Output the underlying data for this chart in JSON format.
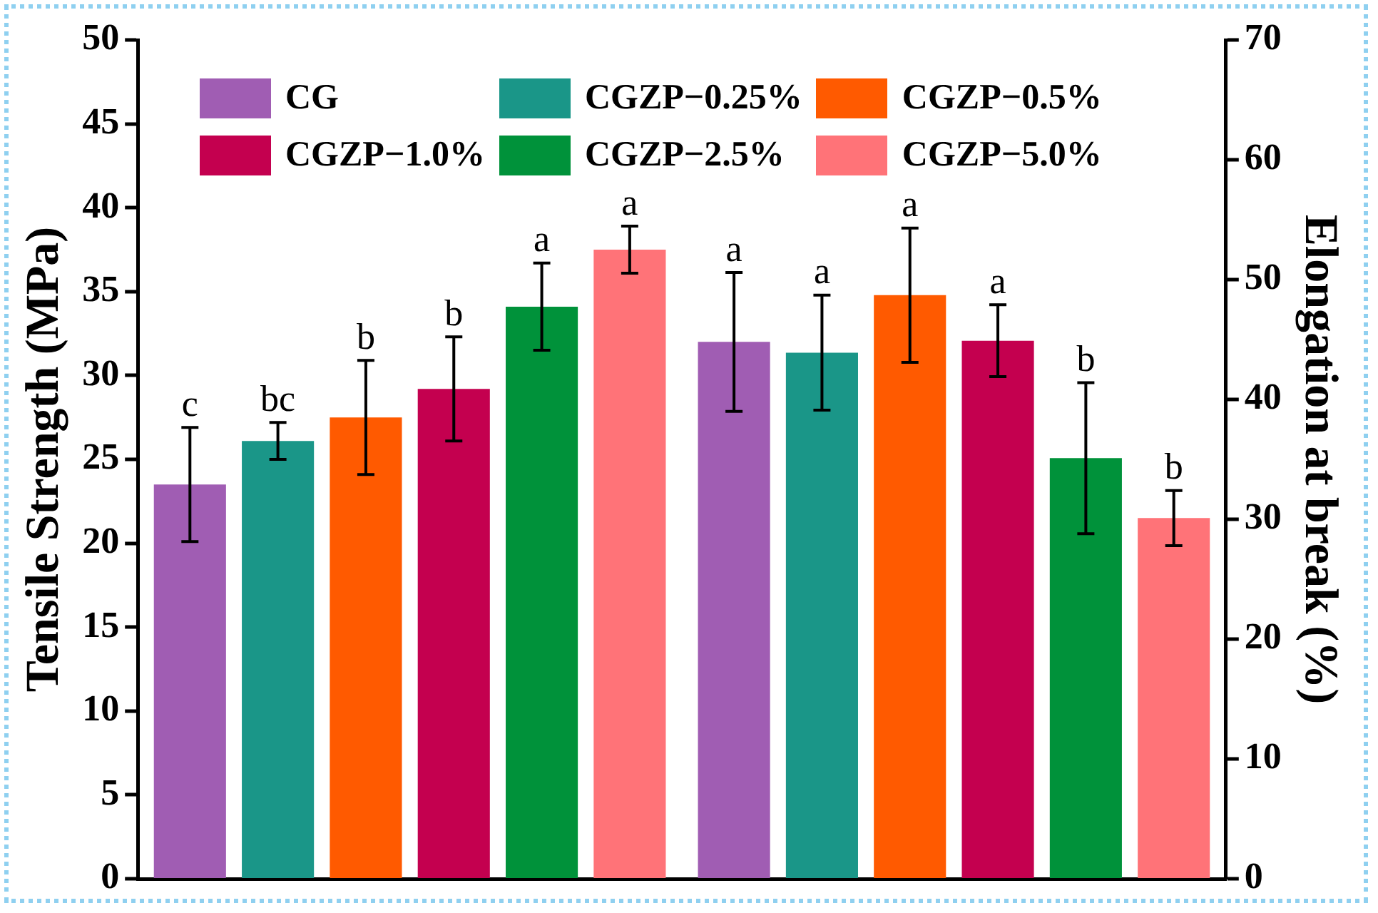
{
  "chart_data": {
    "type": "bar",
    "ylabel": "Tensile Strength (MPa)",
    "y2label": "Elongation at break (%)",
    "categories": [
      null,
      null
    ],
    "ylim": [
      0,
      50
    ],
    "yticks": [
      0,
      5,
      10,
      15,
      20,
      25,
      30,
      35,
      40,
      45,
      50
    ],
    "y2lim": [
      0,
      70
    ],
    "y2ticks": [
      0,
      10,
      20,
      30,
      40,
      50,
      60,
      70
    ],
    "legend": "top",
    "series": [
      {
        "name": "CG",
        "color": "#a05db3",
        "values": [
          23.5,
          null
        ],
        "errors": [
          3.4,
          null
        ],
        "value_labels": [
          "c",
          null
        ]
      },
      {
        "name": "CGZP−0.25%",
        "color": "#1a9688",
        "values": [
          26.1,
          null
        ],
        "errors": [
          1.1,
          null
        ],
        "value_labels": [
          "bc",
          null
        ]
      },
      {
        "name": "CGZP−0.5%",
        "color": "#ff5a00",
        "values": [
          27.5,
          null
        ],
        "errors": [
          3.4,
          null
        ],
        "value_labels": [
          "b",
          null
        ]
      },
      {
        "name": "CGZP−1.0%",
        "color": "#c4004f",
        "values": [
          29.2,
          null
        ],
        "errors": [
          3.1,
          null
        ],
        "value_labels": [
          "b",
          null
        ]
      },
      {
        "name": "CGZP−2.5%",
        "color": "#00923a",
        "values": [
          34.1,
          null
        ],
        "errors": [
          2.6,
          null
        ],
        "value_labels": [
          "a",
          null
        ]
      },
      {
        "name": "CGZP−5.0%",
        "color": "#ff7378",
        "values": [
          37.5,
          null
        ],
        "errors": [
          1.4,
          null
        ],
        "value_labels": [
          "a",
          null
        ]
      },
      {
        "axis": "y2",
        "color": "#a05db3",
        "values": [
          null,
          44.8
        ],
        "errors": [
          null,
          5.8
        ],
        "value_labels": [
          null,
          "a"
        ]
      },
      {
        "axis": "y2",
        "color": "#1a9688",
        "values": [
          null,
          43.9
        ],
        "errors": [
          null,
          4.8
        ],
        "value_labels": [
          null,
          "a"
        ]
      },
      {
        "axis": "y2",
        "color": "#ff5a00",
        "values": [
          null,
          48.7
        ],
        "errors": [
          null,
          5.6
        ],
        "value_labels": [
          null,
          "a"
        ]
      },
      {
        "axis": "y2",
        "color": "#c4004f",
        "values": [
          null,
          44.9
        ],
        "errors": [
          null,
          3.0
        ],
        "value_labels": [
          null,
          "a"
        ]
      },
      {
        "axis": "y2",
        "color": "#00923a",
        "values": [
          null,
          35.1
        ],
        "errors": [
          null,
          6.3
        ],
        "value_labels": [
          null,
          "b"
        ]
      },
      {
        "axis": "y2",
        "color": "#ff7378",
        "values": [
          null,
          30.1
        ],
        "errors": [
          null,
          2.3
        ],
        "value_labels": [
          null,
          "b"
        ]
      }
    ]
  }
}
